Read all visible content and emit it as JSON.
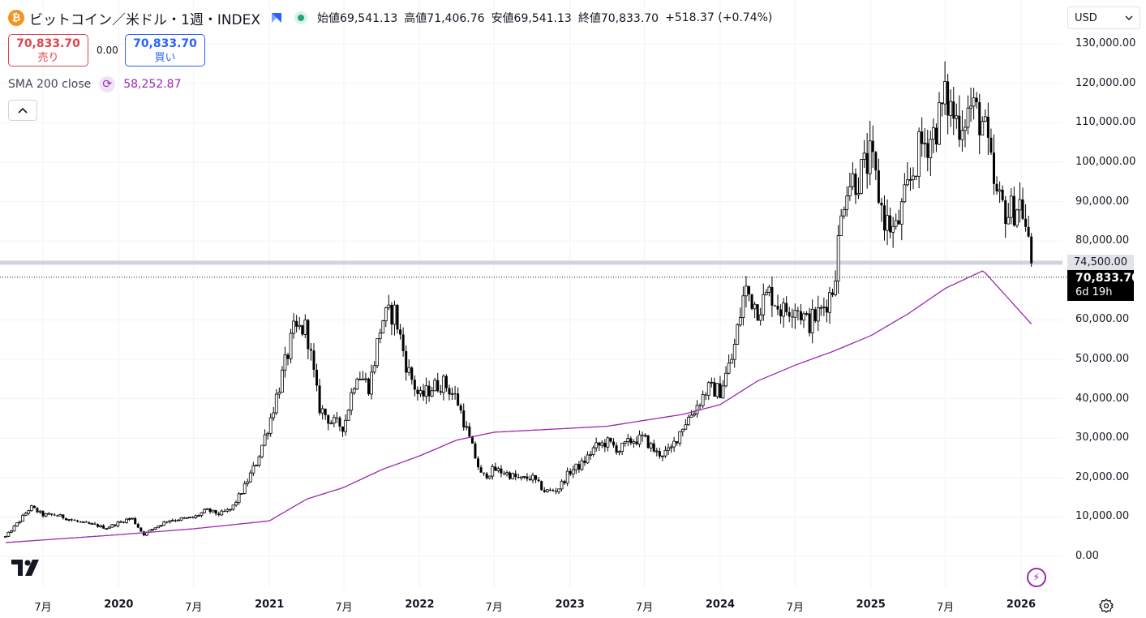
{
  "header": {
    "coin_icon": "bitcoin-icon",
    "coin_glyph": "₿",
    "symbol": "ビットコイン／米ドル・1週・INDEX",
    "open": "始値69,541.13",
    "high": "高値71,406.76",
    "low": "安値69,541.13",
    "close": "終値70,833.70",
    "change": "+518.37 (+0.74%)"
  },
  "trade": {
    "sell_price": "70,833.70",
    "sell_label": "売り",
    "spread": "0.00",
    "buy_price": "70,833.70",
    "buy_label": "買い"
  },
  "indicator": {
    "label": "SMA 200 close",
    "value": "58,252.87",
    "color": "#9c27b0"
  },
  "currency": "USD",
  "price_tags": {
    "hline_value": "74,500.00",
    "last_value": "70,833.70",
    "countdown": "6d 19h"
  },
  "colors": {
    "candle": "#000000",
    "sma": "#9c27b0",
    "grid": "#f0f3fa",
    "hline": "#d1d4dc"
  },
  "chart_data": {
    "type": "candlestick",
    "interval": "1 week",
    "y_ticks": [
      "130,000.00",
      "120,000.00",
      "110,000.00",
      "100,000.00",
      "90,000.00",
      "80,000.00",
      "60,000.00",
      "50,000.00",
      "40,000.00",
      "30,000.00",
      "20,000.00",
      "10,000.00",
      "0.00"
    ],
    "ylim": [
      0,
      130000
    ],
    "x_ticks": [
      {
        "label": "7月",
        "date": "2019-07",
        "year": false
      },
      {
        "label": "2020",
        "date": "2020-01",
        "year": true
      },
      {
        "label": "7月",
        "date": "2020-07",
        "year": false
      },
      {
        "label": "2021",
        "date": "2021-01",
        "year": true
      },
      {
        "label": "7月",
        "date": "2021-07",
        "year": false
      },
      {
        "label": "2022",
        "date": "2022-01",
        "year": true
      },
      {
        "label": "7月",
        "date": "2022-07",
        "year": false
      },
      {
        "label": "2023",
        "date": "2023-01",
        "year": true
      },
      {
        "label": "7月",
        "date": "2023-07",
        "year": false
      },
      {
        "label": "2024",
        "date": "2024-01",
        "year": true
      },
      {
        "label": "7月",
        "date": "2024-07",
        "year": false
      },
      {
        "label": "2025",
        "date": "2025-01",
        "year": true
      },
      {
        "label": "7月",
        "date": "2025-07",
        "year": false
      },
      {
        "label": "2026",
        "date": "2026-01",
        "year": true
      }
    ],
    "price_anchors": [
      [
        "2019-04",
        5000
      ],
      [
        "2019-05",
        8500
      ],
      [
        "2019-06",
        12500
      ],
      [
        "2019-07",
        10500
      ],
      [
        "2019-08",
        10500
      ],
      [
        "2019-09",
        9500
      ],
      [
        "2019-10",
        8500
      ],
      [
        "2019-11",
        8000
      ],
      [
        "2019-12",
        7200
      ],
      [
        "2020-01",
        8500
      ],
      [
        "2020-02",
        9800
      ],
      [
        "2020-03",
        5500
      ],
      [
        "2020-04",
        7500
      ],
      [
        "2020-05",
        9200
      ],
      [
        "2020-06",
        9500
      ],
      [
        "2020-07",
        9800
      ],
      [
        "2020-08",
        11700
      ],
      [
        "2020-09",
        10700
      ],
      [
        "2020-10",
        12000
      ],
      [
        "2020-11",
        17500
      ],
      [
        "2020-12",
        24000
      ],
      [
        "2021-01",
        34000
      ],
      [
        "2021-02",
        46000
      ],
      [
        "2021-03",
        57000
      ],
      [
        "2021-04",
        58000
      ],
      [
        "2021-05",
        38000
      ],
      [
        "2021-06",
        34000
      ],
      [
        "2021-07",
        33000
      ],
      [
        "2021-08",
        47000
      ],
      [
        "2021-09",
        43000
      ],
      [
        "2021-10",
        60000
      ],
      [
        "2021-11",
        62000
      ],
      [
        "2021-12",
        48000
      ],
      [
        "2022-01",
        40000
      ],
      [
        "2022-02",
        43000
      ],
      [
        "2022-03",
        44000
      ],
      [
        "2022-04",
        40000
      ],
      [
        "2022-05",
        30000
      ],
      [
        "2022-06",
        20000
      ],
      [
        "2022-07",
        22000
      ],
      [
        "2022-08",
        21000
      ],
      [
        "2022-09",
        19500
      ],
      [
        "2022-10",
        20000
      ],
      [
        "2022-11",
        16500
      ],
      [
        "2022-12",
        16800
      ],
      [
        "2023-01",
        21500
      ],
      [
        "2023-02",
        23500
      ],
      [
        "2023-03",
        27500
      ],
      [
        "2023-04",
        29000
      ],
      [
        "2023-05",
        27000
      ],
      [
        "2023-06",
        29500
      ],
      [
        "2023-07",
        29800
      ],
      [
        "2023-08",
        26000
      ],
      [
        "2023-09",
        26500
      ],
      [
        "2023-10",
        33000
      ],
      [
        "2023-11",
        37500
      ],
      [
        "2023-12",
        42500
      ],
      [
        "2024-01",
        42000
      ],
      [
        "2024-02",
        51000
      ],
      [
        "2024-03",
        68000
      ],
      [
        "2024-04",
        63000
      ],
      [
        "2024-05",
        67000
      ],
      [
        "2024-06",
        62000
      ],
      [
        "2024-07",
        64000
      ],
      [
        "2024-08",
        59000
      ],
      [
        "2024-09",
        62000
      ],
      [
        "2024-10",
        68000
      ],
      [
        "2024-11",
        95000
      ],
      [
        "2024-12",
        96000
      ],
      [
        "2025-01",
        101000
      ],
      [
        "2025-02",
        86000
      ],
      [
        "2025-03",
        82000
      ],
      [
        "2025-04",
        93000
      ],
      [
        "2025-05",
        104000
      ],
      [
        "2025-06",
        107000
      ],
      [
        "2025-07",
        116000
      ],
      [
        "2025-08",
        110000
      ],
      [
        "2025-09",
        114000
      ],
      [
        "2025-10",
        110000
      ],
      [
        "2025-11",
        91000
      ],
      [
        "2025-12",
        87000
      ],
      [
        "2026-01",
        90000
      ],
      [
        "2026-02",
        70833.7
      ]
    ],
    "sma_200_anchors": [
      [
        "2019-04",
        3500
      ],
      [
        "2020-01",
        5500
      ],
      [
        "2020-07",
        7000
      ],
      [
        "2021-01",
        9000
      ],
      [
        "2021-04",
        14500
      ],
      [
        "2021-07",
        17500
      ],
      [
        "2021-10",
        22000
      ],
      [
        "2022-01",
        25500
      ],
      [
        "2022-04",
        29500
      ],
      [
        "2022-07",
        31500
      ],
      [
        "2022-10",
        32000
      ],
      [
        "2023-01",
        32500
      ],
      [
        "2023-04",
        33000
      ],
      [
        "2023-07",
        34500
      ],
      [
        "2023-10",
        36000
      ],
      [
        "2024-01",
        38500
      ],
      [
        "2024-04",
        44500
      ],
      [
        "2024-07",
        48500
      ],
      [
        "2024-10",
        52000
      ],
      [
        "2025-01",
        56000
      ],
      [
        "2025-04",
        61500
      ],
      [
        "2025-07",
        68000
      ],
      [
        "2025-10",
        72500
      ],
      [
        "2026-02",
        58252.87
      ]
    ],
    "horizontal_line": 74500,
    "last_price": 70833.7
  },
  "controls": {
    "collapse_icon": "chevron-up-icon",
    "currency_dropdown_icon": "chevron-down-icon",
    "settings_icon": "gear-icon",
    "logo": "tradingview-logo",
    "bolt_icon": "lightning-icon"
  }
}
